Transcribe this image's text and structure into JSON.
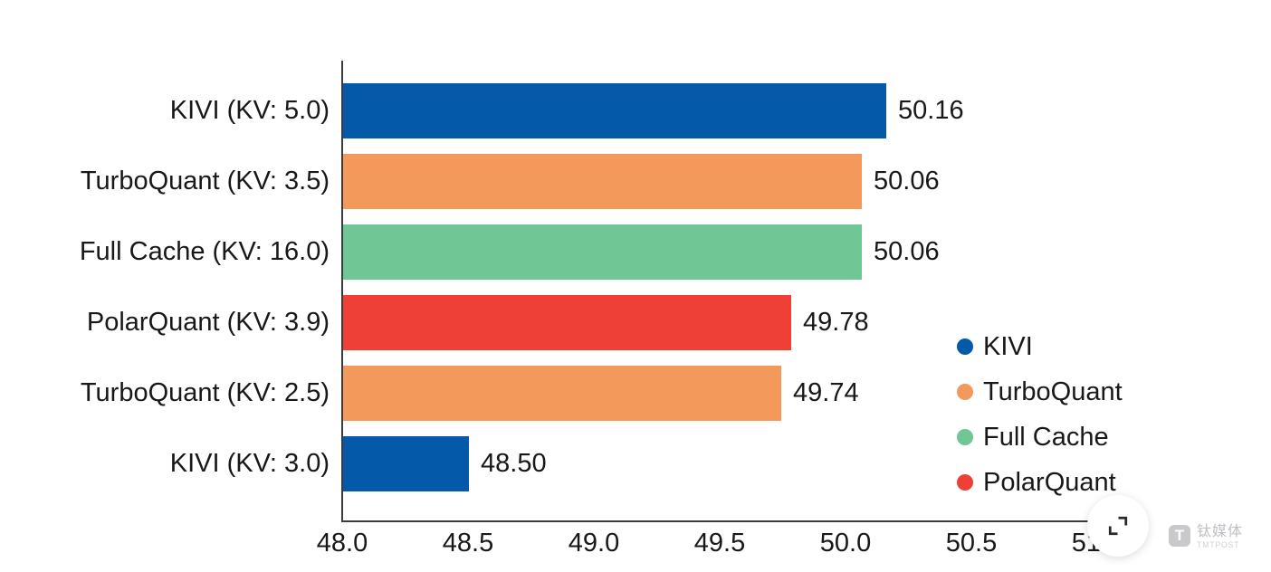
{
  "chart_data": {
    "type": "bar",
    "orientation": "horizontal",
    "categories": [
      "KIVI (KV: 5.0)",
      "TurboQuant (KV: 3.5)",
      "Full Cache (KV: 16.0)",
      "PolarQuant (KV: 3.9)",
      "TurboQuant (KV: 2.5)",
      "KIVI (KV: 3.0)"
    ],
    "values": [
      50.16,
      50.06,
      50.06,
      49.78,
      49.74,
      48.5
    ],
    "value_labels": [
      "50.16",
      "50.06",
      "50.06",
      "49.78",
      "49.74",
      "48.50"
    ],
    "bar_series": [
      "KIVI",
      "TurboQuant",
      "Full Cache",
      "PolarQuant",
      "TurboQuant",
      "KIVI"
    ],
    "bar_colors": [
      "#0459A9",
      "#F2995B",
      "#70C694",
      "#EF4038",
      "#F2995B",
      "#0459A9"
    ],
    "xlim": [
      48.0,
      51.0
    ],
    "x_ticks": [
      "48.0",
      "48.5",
      "49.0",
      "49.5",
      "50.0",
      "50.5",
      "51.0"
    ],
    "x_tick_values": [
      48.0,
      48.5,
      49.0,
      49.5,
      50.0,
      50.5,
      51.0
    ],
    "grid": false,
    "legend": {
      "position": "right-middle",
      "entries": [
        {
          "label": "KIVI",
          "color": "#0459A9"
        },
        {
          "label": "TurboQuant",
          "color": "#F2995B"
        },
        {
          "label": "Full Cache",
          "color": "#70C694"
        },
        {
          "label": "PolarQuant",
          "color": "#EF4038"
        }
      ]
    }
  },
  "watermark": {
    "logo_letter": "T",
    "name_cn": "钛媒体",
    "name_en": "TMTPOST"
  }
}
